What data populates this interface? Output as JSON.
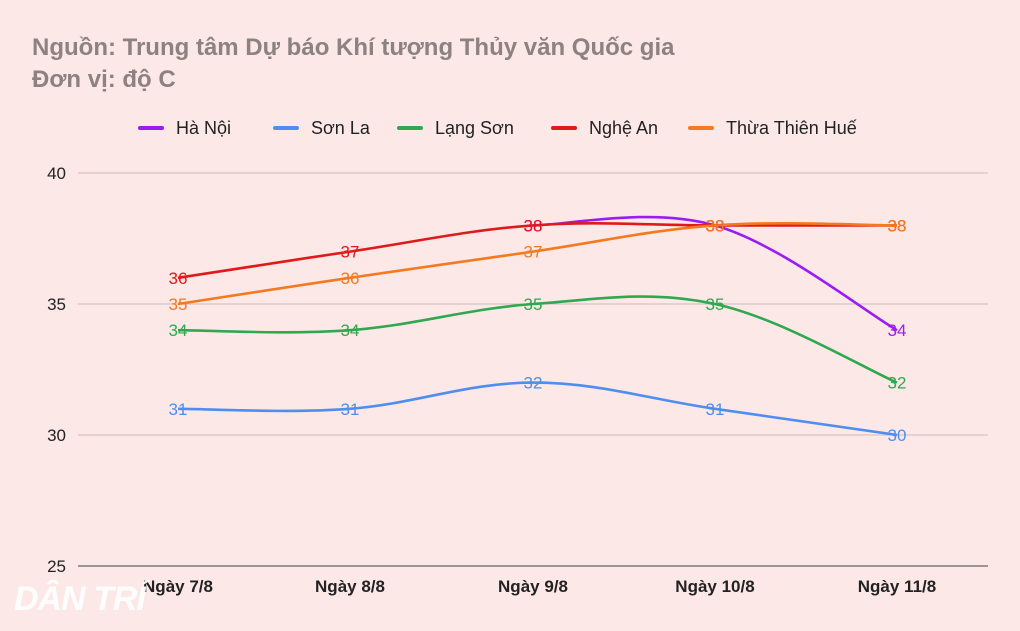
{
  "header": {
    "source": "Nguồn: Trung tâm Dự báo Khí tượng Thủy văn Quốc gia",
    "unit": "Đơn vị: độ C"
  },
  "watermark": "DÂN TRÍ",
  "chart_data": {
    "type": "line",
    "smooth": true,
    "categories": [
      "Ngày 7/8",
      "Ngày 8/8",
      "Ngày 9/8",
      "Ngày 10/8",
      "Ngày 11/8"
    ],
    "ylim": [
      25,
      40
    ],
    "yticks": [
      25,
      30,
      35,
      40
    ],
    "grid": true,
    "legend": "top",
    "series": [
      {
        "name": "Hà Nội",
        "color": "#9b1cf2",
        "values": [
          null,
          null,
          38,
          38,
          34
        ]
      },
      {
        "name": "Sơn La",
        "color": "#4e8ef0",
        "values": [
          31,
          31,
          32,
          31,
          30
        ]
      },
      {
        "name": "Lạng Sơn",
        "color": "#2fa84f",
        "values": [
          34,
          34,
          35,
          35,
          32
        ]
      },
      {
        "name": "Nghệ An",
        "color": "#e01a1a",
        "values": [
          36,
          37,
          38,
          38,
          38
        ]
      },
      {
        "name": "Thừa Thiên Huế",
        "color": "#f47a20",
        "values": [
          35,
          36,
          37,
          38,
          38
        ]
      }
    ]
  }
}
